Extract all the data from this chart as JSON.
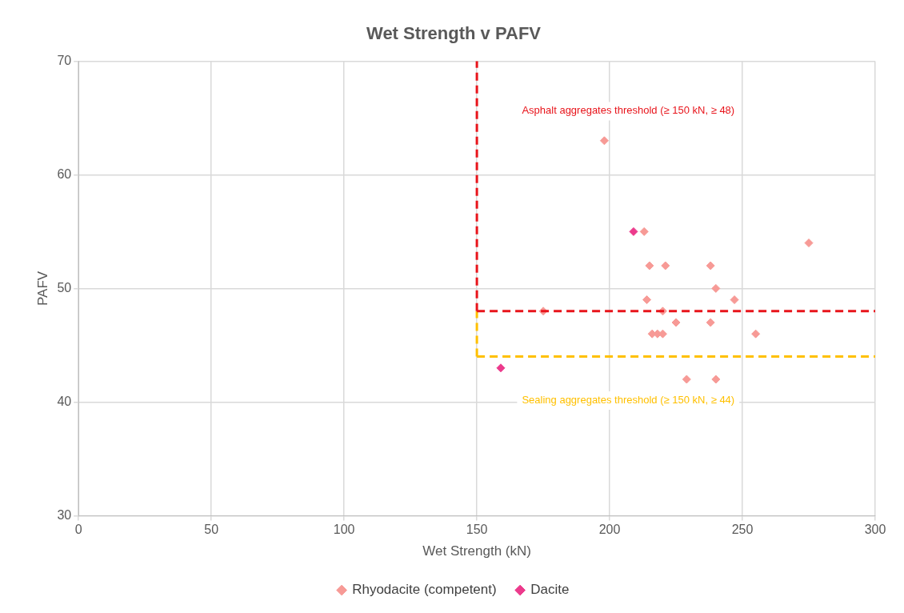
{
  "chart_data": {
    "type": "scatter",
    "title": "Wet Strength v PAFV",
    "xlabel": "Wet Strength (kN)",
    "ylabel": "PAFV",
    "xlim": [
      0,
      300
    ],
    "xticks": [
      0,
      50,
      100,
      150,
      200,
      250,
      300
    ],
    "ylim": [
      30,
      70
    ],
    "yticks": [
      30,
      40,
      50,
      60,
      70
    ],
    "grid": true,
    "legend": "bottom",
    "marker": "diamond",
    "series": [
      {
        "name": "Rhyodacite (competent)",
        "color": "#f79a96",
        "x": [
          198,
          213,
          275,
          215,
          221,
          238,
          240,
          214,
          247,
          175,
          220,
          225,
          238,
          216,
          218,
          220,
          255,
          229,
          240
        ],
        "values": [
          63,
          55,
          54,
          52,
          52,
          52,
          50,
          49,
          49,
          48,
          48,
          47,
          47,
          46,
          46,
          46,
          46,
          42,
          42
        ]
      },
      {
        "name": "Dacite",
        "color": "#ec3a8c",
        "x": [
          209,
          159
        ],
        "values": [
          55,
          43
        ]
      }
    ],
    "ref_lines": [
      {
        "axis": "y",
        "value": 44,
        "color": "#ffc000",
        "line_style": "dashed",
        "label": "Sealing aggregates threshold (≥ 150 kN, ≥ 44)"
      },
      {
        "axis": "x",
        "value": 150,
        "color": "#ffc000",
        "line_style": "dashed"
      },
      {
        "axis": "y",
        "value": 48,
        "color": "#e8141b",
        "line_style": "dashed",
        "label": "Asphalt aggregates threshold (≥ 150 kN, ≥ 48)"
      },
      {
        "axis": "x",
        "value": 150,
        "color": "#e8141b",
        "line_style": "dashed"
      }
    ]
  }
}
